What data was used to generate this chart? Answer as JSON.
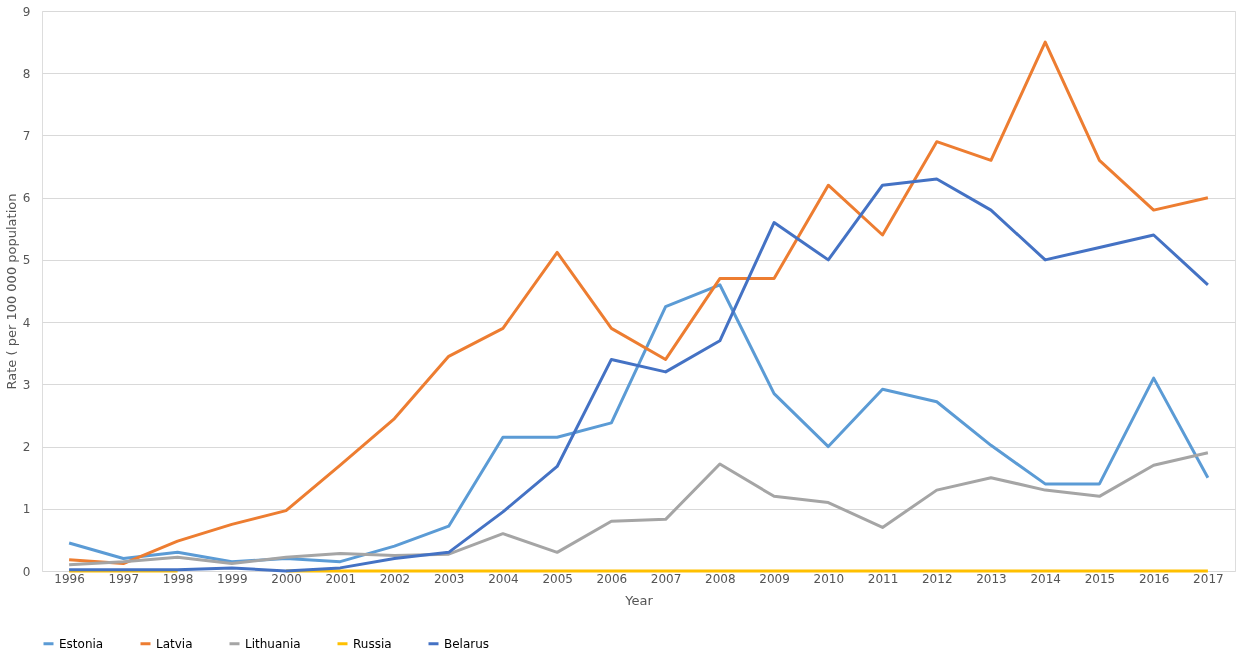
{
  "chart_data": {
    "type": "line",
    "categories": [
      "1996",
      "1997",
      "1998",
      "1999",
      "2000",
      "2001",
      "2002",
      "2003",
      "2004",
      "2005",
      "2006",
      "2007",
      "2008",
      "2009",
      "2010",
      "2011",
      "2012",
      "2013",
      "2014",
      "2015",
      "2016",
      "2017"
    ],
    "xlabel": "Year",
    "ylabel": "Rate ( per 100 000  population",
    "ylim": [
      0,
      9
    ],
    "yticks": [
      0,
      1,
      2,
      3,
      4,
      5,
      6,
      7,
      8,
      9
    ],
    "grid": "y",
    "legend": "bottom",
    "marker": "none",
    "line_style": "solid",
    "series": [
      {
        "name": "Estonia",
        "color": "#5b9bd5",
        "values": [
          0.45,
          0.2,
          0.3,
          0.15,
          0.2,
          0.15,
          0.4,
          0.72,
          2.15,
          2.15,
          2.38,
          4.25,
          4.6,
          2.85,
          2.0,
          2.92,
          2.72,
          2.02,
          1.4,
          1.4,
          3.1,
          1.5
        ]
      },
      {
        "name": "Latvia",
        "color": "#ed7d31",
        "values": [
          0.18,
          0.12,
          0.48,
          0.75,
          0.97,
          1.7,
          2.45,
          3.45,
          3.9,
          5.12,
          3.9,
          3.4,
          4.7,
          4.7,
          6.2,
          5.4,
          6.9,
          6.6,
          8.5,
          6.6,
          5.8,
          6.0
        ]
      },
      {
        "name": "Lithuania",
        "color": "#a5a5a5",
        "values": [
          0.1,
          0.15,
          0.22,
          0.12,
          0.22,
          0.28,
          0.25,
          0.27,
          0.6,
          0.3,
          0.8,
          0.83,
          1.72,
          1.2,
          1.1,
          0.7,
          1.3,
          1.5,
          1.3,
          1.2,
          1.7,
          1.9
        ]
      },
      {
        "name": "Russia",
        "color": "#ffc000",
        "values": [
          0,
          0,
          0,
          null,
          0,
          0,
          0,
          0,
          0,
          0,
          0,
          0,
          0,
          0,
          0,
          0,
          0,
          0,
          0,
          0,
          0,
          0
        ]
      },
      {
        "name": "Belarus",
        "color": "#4472c4",
        "values": [
          0.02,
          0.02,
          0.02,
          0.05,
          0,
          0.05,
          0.2,
          0.3,
          0.95,
          1.68,
          3.4,
          3.2,
          3.7,
          5.6,
          5.0,
          6.2,
          6.3,
          5.8,
          5.0,
          5.2,
          5.4,
          4.6
        ]
      }
    ]
  }
}
